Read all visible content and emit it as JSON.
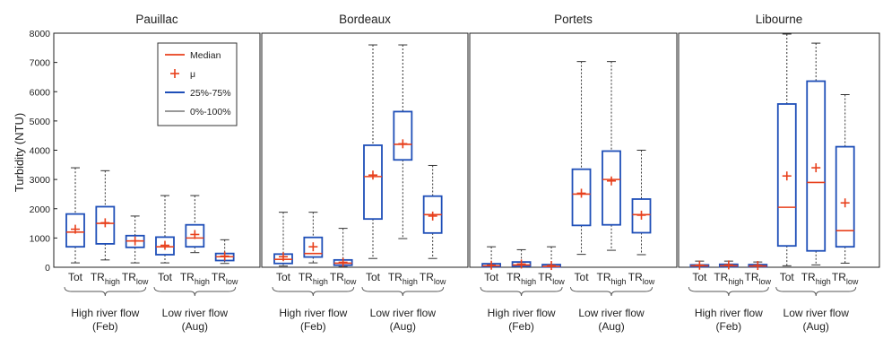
{
  "chart_data": {
    "type": "box",
    "ylabel": "Turbidity (NTU)",
    "ylim": [
      0,
      8000
    ],
    "yticks": [
      0,
      1000,
      2000,
      3000,
      4000,
      5000,
      6000,
      7000,
      8000
    ],
    "legend": {
      "placement": "top-right of first panel",
      "entries": [
        {
          "label": "Median",
          "kind": "median",
          "color": "#e8401c"
        },
        {
          "label": "μ",
          "kind": "mean",
          "color": "#e8401c"
        },
        {
          "label": "25%-75%",
          "kind": "box",
          "color": "#1f4fb8"
        },
        {
          "label": "0%-100%",
          "kind": "whisker",
          "color": "#333333"
        }
      ]
    },
    "groups": [
      {
        "label": "High river flow",
        "sub": "(Feb)"
      },
      {
        "label": "Low river flow",
        "sub": "(Aug)"
      }
    ],
    "categories": [
      {
        "main": "Tot",
        "sub": ""
      },
      {
        "main": "TR",
        "sub": "high"
      },
      {
        "main": "TR",
        "sub": "low"
      }
    ],
    "panels": [
      {
        "title": "Pauillac",
        "boxes": [
          {
            "min": 150,
            "q1": 700,
            "median": 1200,
            "q3": 1820,
            "max": 3400,
            "mean": 1300
          },
          {
            "min": 250,
            "q1": 800,
            "median": 1500,
            "q3": 2070,
            "max": 3300,
            "mean": 1520
          },
          {
            "min": 150,
            "q1": 680,
            "median": 900,
            "q3": 1080,
            "max": 1750,
            "mean": 900
          },
          {
            "min": 150,
            "q1": 430,
            "median": 700,
            "q3": 1030,
            "max": 2450,
            "mean": 750
          },
          {
            "min": 500,
            "q1": 700,
            "median": 1000,
            "q3": 1450,
            "max": 2450,
            "mean": 1120
          },
          {
            "min": 130,
            "q1": 230,
            "median": 360,
            "q3": 470,
            "max": 940,
            "mean": 380
          }
        ]
      },
      {
        "title": "Bordeaux",
        "boxes": [
          {
            "min": 40,
            "q1": 130,
            "median": 270,
            "q3": 450,
            "max": 1880,
            "mean": 360
          },
          {
            "min": 150,
            "q1": 350,
            "median": 470,
            "q3": 1020,
            "max": 1880,
            "mean": 700
          },
          {
            "min": 20,
            "q1": 70,
            "median": 140,
            "q3": 250,
            "max": 1330,
            "mean": 170
          },
          {
            "min": 300,
            "q1": 1650,
            "median": 3100,
            "q3": 4170,
            "max": 7600,
            "mean": 3150
          },
          {
            "min": 980,
            "q1": 3670,
            "median": 4200,
            "q3": 5320,
            "max": 7600,
            "mean": 4220
          },
          {
            "min": 300,
            "q1": 1170,
            "median": 1800,
            "q3": 2430,
            "max": 3480,
            "mean": 1750
          }
        ]
      },
      {
        "title": "Portets",
        "boxes": [
          {
            "min": 0,
            "q1": 20,
            "median": 50,
            "q3": 120,
            "max": 700,
            "mean": 70
          },
          {
            "min": 0,
            "q1": 30,
            "median": 80,
            "q3": 180,
            "max": 600,
            "mean": 110
          },
          {
            "min": 0,
            "q1": 10,
            "median": 30,
            "q3": 90,
            "max": 700,
            "mean": 60
          },
          {
            "min": 440,
            "q1": 1430,
            "median": 2500,
            "q3": 3350,
            "max": 7030,
            "mean": 2530
          },
          {
            "min": 580,
            "q1": 1450,
            "median": 3000,
            "q3": 3970,
            "max": 7030,
            "mean": 2950
          },
          {
            "min": 430,
            "q1": 1180,
            "median": 1800,
            "q3": 2330,
            "max": 4000,
            "mean": 1780
          }
        ]
      },
      {
        "title": "Libourne",
        "boxes": [
          {
            "min": 0,
            "q1": 20,
            "median": 50,
            "q3": 80,
            "max": 210,
            "mean": 70
          },
          {
            "min": 0,
            "q1": 20,
            "median": 50,
            "q3": 100,
            "max": 210,
            "mean": 80
          },
          {
            "min": 0,
            "q1": 20,
            "median": 40,
            "q3": 90,
            "max": 180,
            "mean": 60
          },
          {
            "min": 50,
            "q1": 730,
            "median": 2050,
            "q3": 5580,
            "max": 7970,
            "mean": 3120
          },
          {
            "min": 80,
            "q1": 560,
            "median": 2900,
            "q3": 6360,
            "max": 7660,
            "mean": 3400
          },
          {
            "min": 140,
            "q1": 700,
            "median": 1250,
            "q3": 4120,
            "max": 5900,
            "mean": 2200
          }
        ]
      }
    ]
  }
}
